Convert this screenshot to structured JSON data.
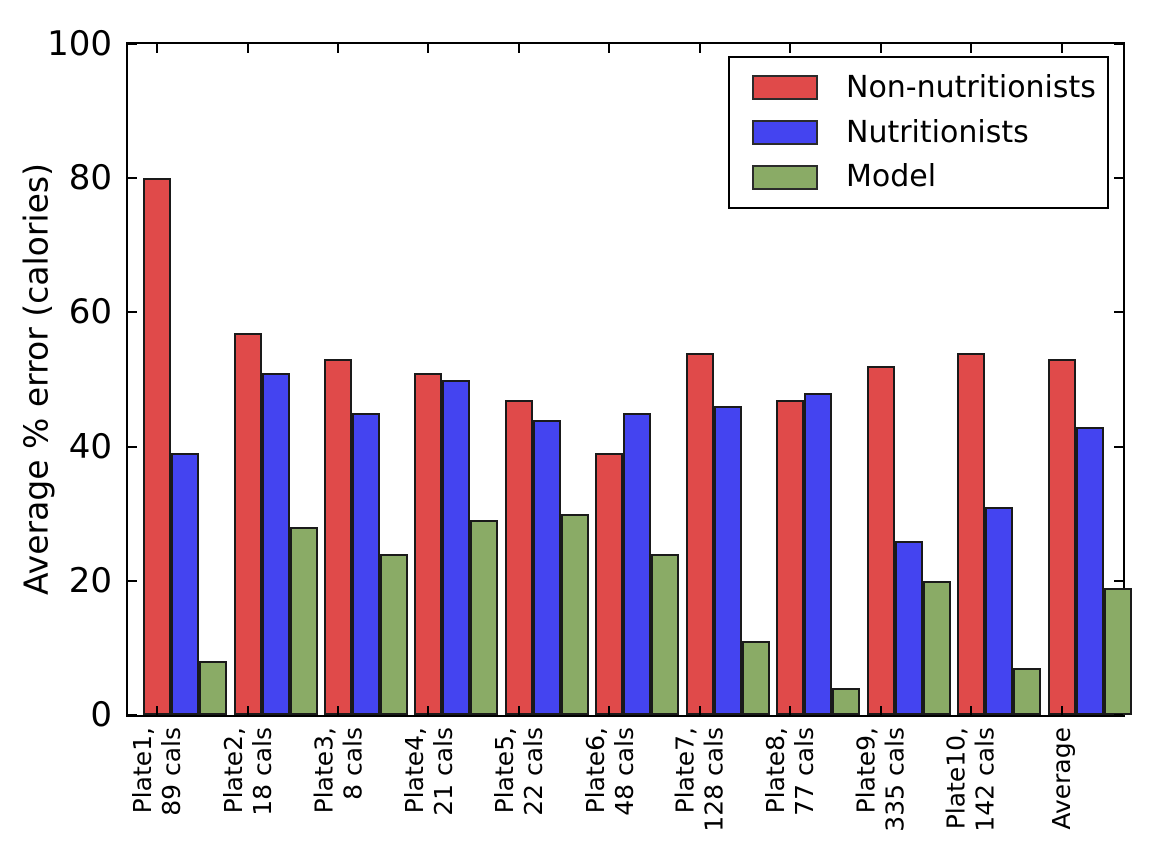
{
  "figure": {
    "background": "#ffffff"
  },
  "chart_data": {
    "type": "bar",
    "title": "",
    "xlabel": "",
    "ylabel": "Average % error (calories)",
    "ylim": [
      0,
      100
    ],
    "yticks": [
      0,
      20,
      40,
      60,
      80,
      100
    ],
    "grid": false,
    "legend_position": "upper right",
    "axis_color": "#000000",
    "bar_edge_color": "#1a1a1a",
    "categories": [
      "Plate1,\n89 cals",
      "Plate2,\n18 cals",
      "Plate3,\n8 cals",
      "Plate4,\n21 cals",
      "Plate5,\n22 cals",
      "Plate6,\n48 cals",
      "Plate7,\n128 cals",
      "Plate8,\n77 cals",
      "Plate9,\n335 cals",
      "Plate10,\n142 cals",
      "Average"
    ],
    "series": [
      {
        "name": "Non-nutritionists",
        "color": "#e04a4a",
        "values": [
          80,
          57,
          53,
          51,
          47,
          39,
          54,
          47,
          52,
          54,
          53
        ]
      },
      {
        "name": "Nutritionists",
        "color": "#4444f0",
        "values": [
          39,
          51,
          45,
          50,
          44,
          45,
          46,
          48,
          26,
          31,
          43
        ]
      },
      {
        "name": "Model",
        "color": "#8aab66",
        "values": [
          8,
          28,
          24,
          29,
          30,
          24,
          11,
          4,
          20,
          7,
          19
        ]
      }
    ]
  }
}
